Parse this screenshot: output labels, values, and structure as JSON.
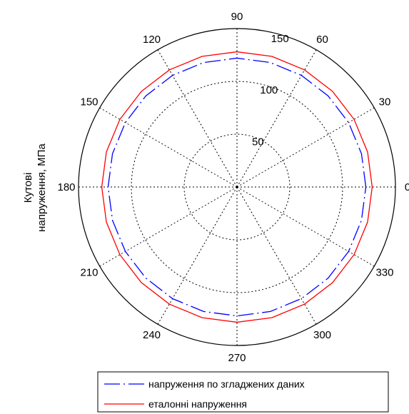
{
  "chart_data": {
    "type": "polar-line",
    "ylabel": [
      "Кутові",
      "напруження, МПа"
    ],
    "r_max": 150,
    "r_ticks": [
      {
        "value": 50,
        "label": "50"
      },
      {
        "value": 100,
        "label": "100"
      },
      {
        "value": 150,
        "label": "150"
      }
    ],
    "theta_ticks": [
      0,
      30,
      60,
      90,
      120,
      150,
      180,
      210,
      240,
      270,
      300,
      330
    ],
    "theta_labels": [
      "0",
      "30",
      "60",
      "90",
      "120",
      "150",
      "180",
      "210",
      "240",
      "270",
      "300",
      "330"
    ],
    "grid": true,
    "legend_position": "bottom",
    "series": [
      {
        "name": "напруження по згладжених даних",
        "color": "#0000ff",
        "style": "dash-dot",
        "theta_deg": [
          0,
          15,
          30,
          45,
          60,
          75,
          90,
          105,
          120,
          135,
          150,
          165,
          180,
          195,
          210,
          225,
          240,
          255,
          270,
          285,
          300,
          315,
          330,
          345,
          360
        ],
        "r": [
          122,
          122,
          122,
          122,
          122,
          122,
          122,
          122,
          122,
          122,
          122,
          122,
          122,
          122,
          122,
          122,
          122,
          122,
          122,
          122,
          122,
          122,
          122,
          122,
          122
        ]
      },
      {
        "name": "еталонні напруження",
        "color": "#ff0000",
        "style": "solid",
        "theta_deg": [
          0,
          15,
          30,
          45,
          60,
          75,
          90,
          105,
          120,
          135,
          150,
          165,
          180,
          195,
          210,
          225,
          240,
          255,
          270,
          285,
          300,
          315,
          330,
          345,
          360
        ],
        "r": [
          128,
          128,
          128,
          128,
          128,
          128,
          128,
          128,
          128,
          128,
          128,
          128,
          128,
          128,
          128,
          128,
          128,
          128,
          128,
          128,
          128,
          128,
          128,
          128,
          128
        ]
      }
    ]
  }
}
